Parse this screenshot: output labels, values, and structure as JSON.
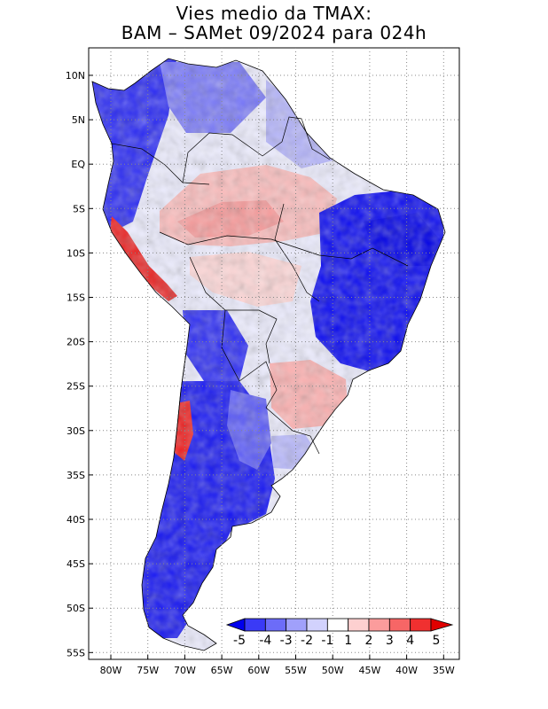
{
  "title": {
    "line1": "Vies medio da TMAX:",
    "line2": "BAM – SAMet 09/2024  para 024h"
  },
  "axes": {
    "lat_labels": [
      "10N",
      "5N",
      "EQ",
      "5S",
      "10S",
      "15S",
      "20S",
      "25S",
      "30S",
      "35S",
      "40S",
      "45S",
      "50S",
      "55S"
    ],
    "lon_labels": [
      "80W",
      "75W",
      "70W",
      "65W",
      "60W",
      "55W",
      "50W",
      "45W",
      "40W",
      "35W"
    ]
  },
  "colorbar": {
    "labels": [
      "-5",
      "-4",
      "-3",
      "-2",
      "-1",
      "1",
      "2",
      "3",
      "4",
      "5"
    ],
    "colors": [
      "#0000ee",
      "#3a3af6",
      "#6c6cf8",
      "#a0a0fb",
      "#d2d2fd",
      "#ffffff",
      "#fdd0d0",
      "#fb9c9c",
      "#f76666",
      "#f03030",
      "#e00000"
    ]
  },
  "icons": {
    "map": "south-america-bias-map-icon"
  }
}
